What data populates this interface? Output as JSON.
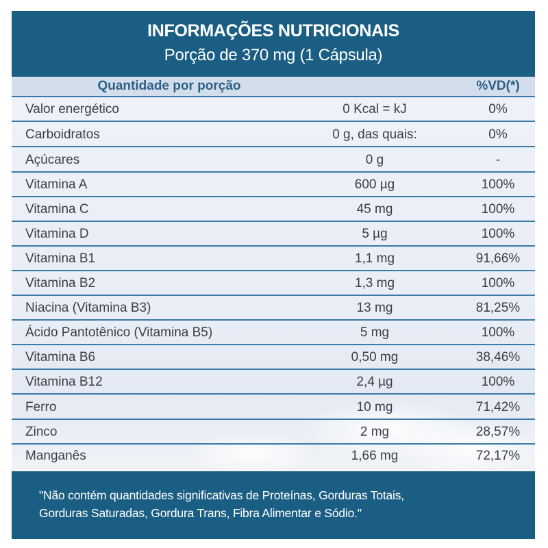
{
  "header": {
    "title": "INFORMAÇÕES NUTRICIONAIS",
    "subtitle": "Porção de 370 mg (1 Cápsula)"
  },
  "table": {
    "header": {
      "quantity": "Quantidade por porção",
      "dv": "%VD(*)"
    },
    "rows": [
      {
        "name": "Valor energético",
        "amount": "0 Kcal = kJ",
        "dv": "0%"
      },
      {
        "name": "Carboidratos",
        "amount": "0 g,  das quais:",
        "dv": "0%"
      },
      {
        "name": "Açúcares",
        "amount": "0 g",
        "dv": "-"
      },
      {
        "name": "Vitamina A",
        "amount": "600 µg",
        "dv": "100%"
      },
      {
        "name": "Vitamina C",
        "amount": "45 mg",
        "dv": "100%"
      },
      {
        "name": "Vitamina D",
        "amount": "5 µg",
        "dv": "100%"
      },
      {
        "name": "Vitamina B1",
        "amount": "1,1 mg",
        "dv": "91,66%"
      },
      {
        "name": "Vitamina B2",
        "amount": "1,3 mg",
        "dv": "100%"
      },
      {
        "name": "Niacina (Vitamina B3)",
        "amount": "13 mg",
        "dv": "81,25%"
      },
      {
        "name": "Ácido Pantotênico (Vitamina B5)",
        "amount": "5 mg",
        "dv": "100%"
      },
      {
        "name": "Vitamina B6",
        "amount": "0,50 mg",
        "dv": "38,46%"
      },
      {
        "name": "Vitamina B12",
        "amount": "2,4 µg",
        "dv": "100%"
      },
      {
        "name": "Ferro",
        "amount": "10 mg",
        "dv": "71,42%"
      },
      {
        "name": "Zinco",
        "amount": "2 mg",
        "dv": "28,57%"
      },
      {
        "name": "Manganês",
        "amount": "1,66 mg",
        "dv": "72,17%"
      }
    ]
  },
  "footnote": {
    "line1": "\"Não contém quantidades significativas de Proteínas, Gorduras Totais,",
    "line2": "Gorduras Saturadas, Gordura Trans, Fibra Alimentar e  Sódio.\""
  }
}
